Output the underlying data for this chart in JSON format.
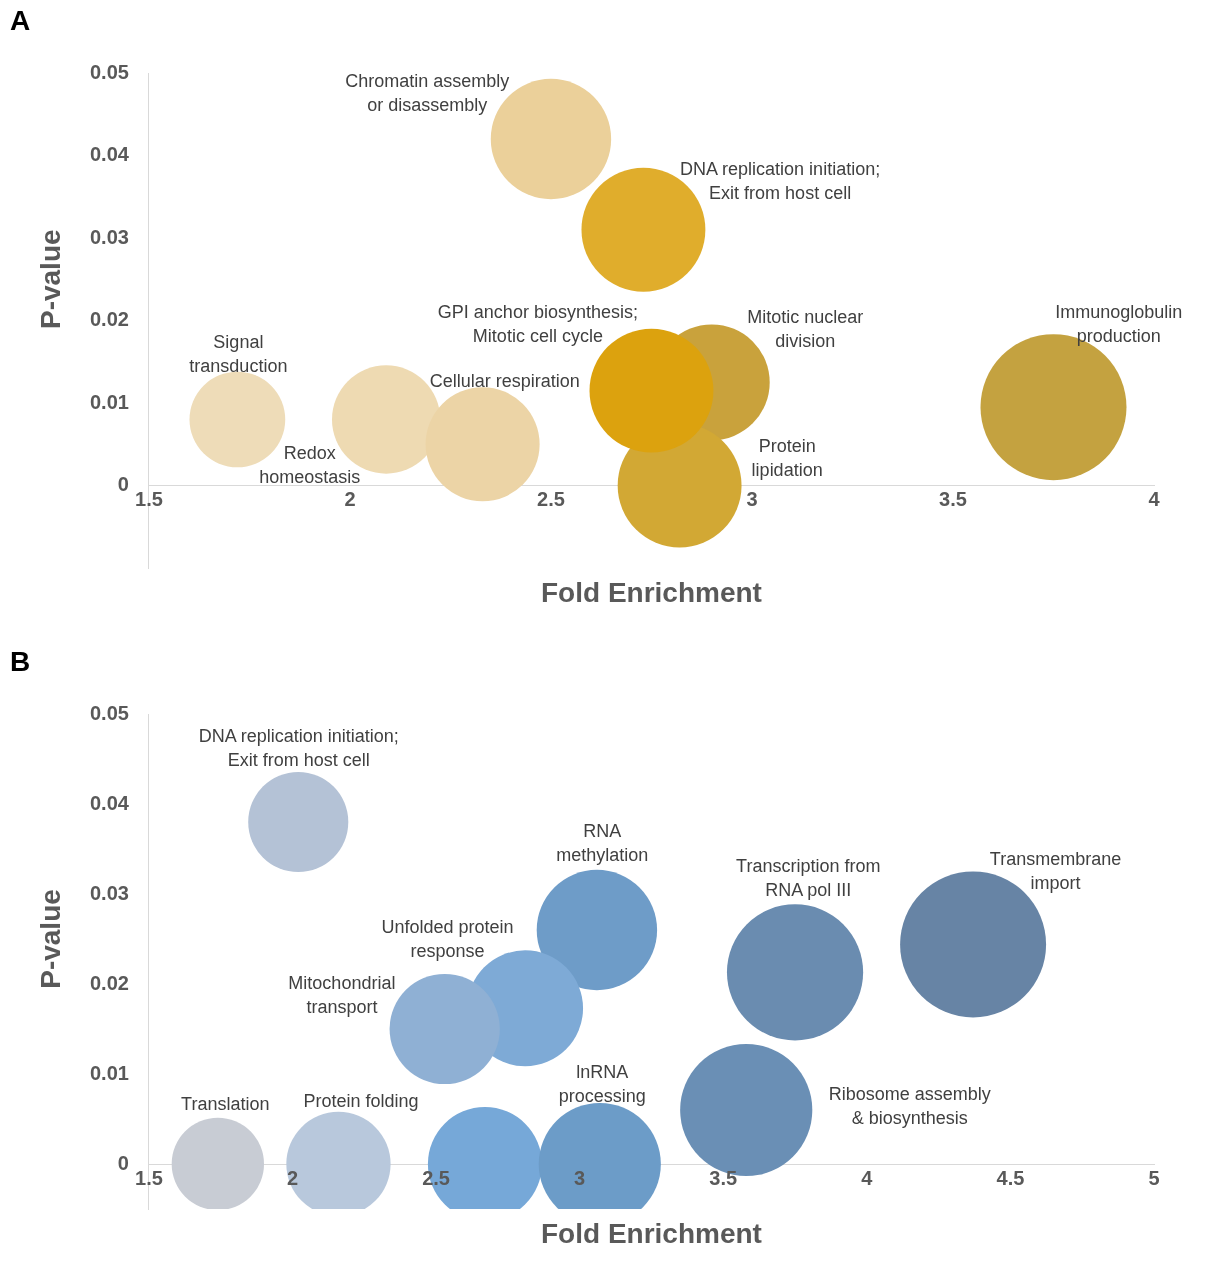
{
  "chart_data": [
    {
      "type": "bubble",
      "title": "A",
      "xlabel": "Fold Enrichment",
      "ylabel": "P-value",
      "xlim": [
        1.5,
        4
      ],
      "xticks": [
        1.5,
        2,
        2.5,
        3,
        3.5,
        4
      ],
      "ylim": [
        -0.01,
        0.05
      ],
      "yticks": [
        0,
        0.01,
        0.02,
        0.03,
        0.04,
        0.05
      ],
      "grid": false,
      "legend": false,
      "x": [
        1.72,
        2.09,
        2.33,
        2.5,
        2.73,
        2.9,
        2.82,
        2.75,
        3.75
      ],
      "values": [
        0.008,
        0.008,
        0.005,
        0.042,
        0.031,
        0.0125,
        0,
        0.0115,
        0.0095
      ],
      "sizes": [
        0.43,
        0.55,
        0.61,
        0.68,
        0.72,
        0.63,
        0.72,
        0.72,
        1
      ],
      "colors": [
        "#eedcb8",
        "#eedab2",
        "#ecd4a6",
        "#ebd09a",
        "#e0ad2c",
        "#c9a23c",
        "#d2a834",
        "#dca20e",
        "#c4a240"
      ],
      "annotations": [
        "Chromatin assembly\nor disassembly",
        "DNA replication initiation;\nExit from host cell",
        "GPI anchor biosynthesis;\nMitotic cell cycle",
        "Mitotic nuclear\ndivision",
        "Immunoglobulin\nproduction",
        "Signal\ntransduction",
        "Cellular respiration",
        "Redox\nhomeostasis",
        "Protein\nlipidation"
      ]
    },
    {
      "type": "bubble",
      "title": "B",
      "xlabel": "Fold Enrichment",
      "ylabel": "P-value",
      "xlim": [
        1.5,
        5
      ],
      "xticks": [
        1.5,
        2,
        2.5,
        3,
        3.5,
        4,
        4.5,
        5
      ],
      "ylim": [
        -0.005,
        0.05
      ],
      "yticks": [
        0,
        0.01,
        0.02,
        0.03,
        0.04,
        0.05
      ],
      "grid": false,
      "legend": false,
      "x": [
        2.02,
        3.06,
        2.81,
        2.53,
        3.75,
        4.37,
        3.58,
        1.74,
        2.16,
        2.67,
        3.07
      ],
      "values": [
        0.038,
        0.026,
        0.0173,
        0.015,
        0.0213,
        0.0244,
        0.006,
        0,
        0,
        0,
        0
      ],
      "sizes": [
        0.47,
        0.68,
        0.63,
        0.57,
        0.87,
        1,
        0.82,
        0.4,
        0.51,
        0.61,
        0.7
      ],
      "colors": [
        "#b4c2d6",
        "#6e9cc8",
        "#7eaad6",
        "#8fb0d4",
        "#6a8cb0",
        "#6784a5",
        "#6a8fb5",
        "#c8ccd4",
        "#b8c8dc",
        "#76a8d8",
        "#6c9cc8"
      ],
      "annotations": [
        "DNA replication initiation;\nExit from host cell",
        "RNA\nmethylation",
        "Transcription from\nRNA pol III",
        "Transmembrane\nimport",
        "Unfolded protein\nresponse",
        "Mitochondrial\ntransport",
        "lnRNA\nprocessing",
        "Ribosome assembly\n& biosynthesis",
        "Translation",
        "Protein folding"
      ]
    }
  ]
}
